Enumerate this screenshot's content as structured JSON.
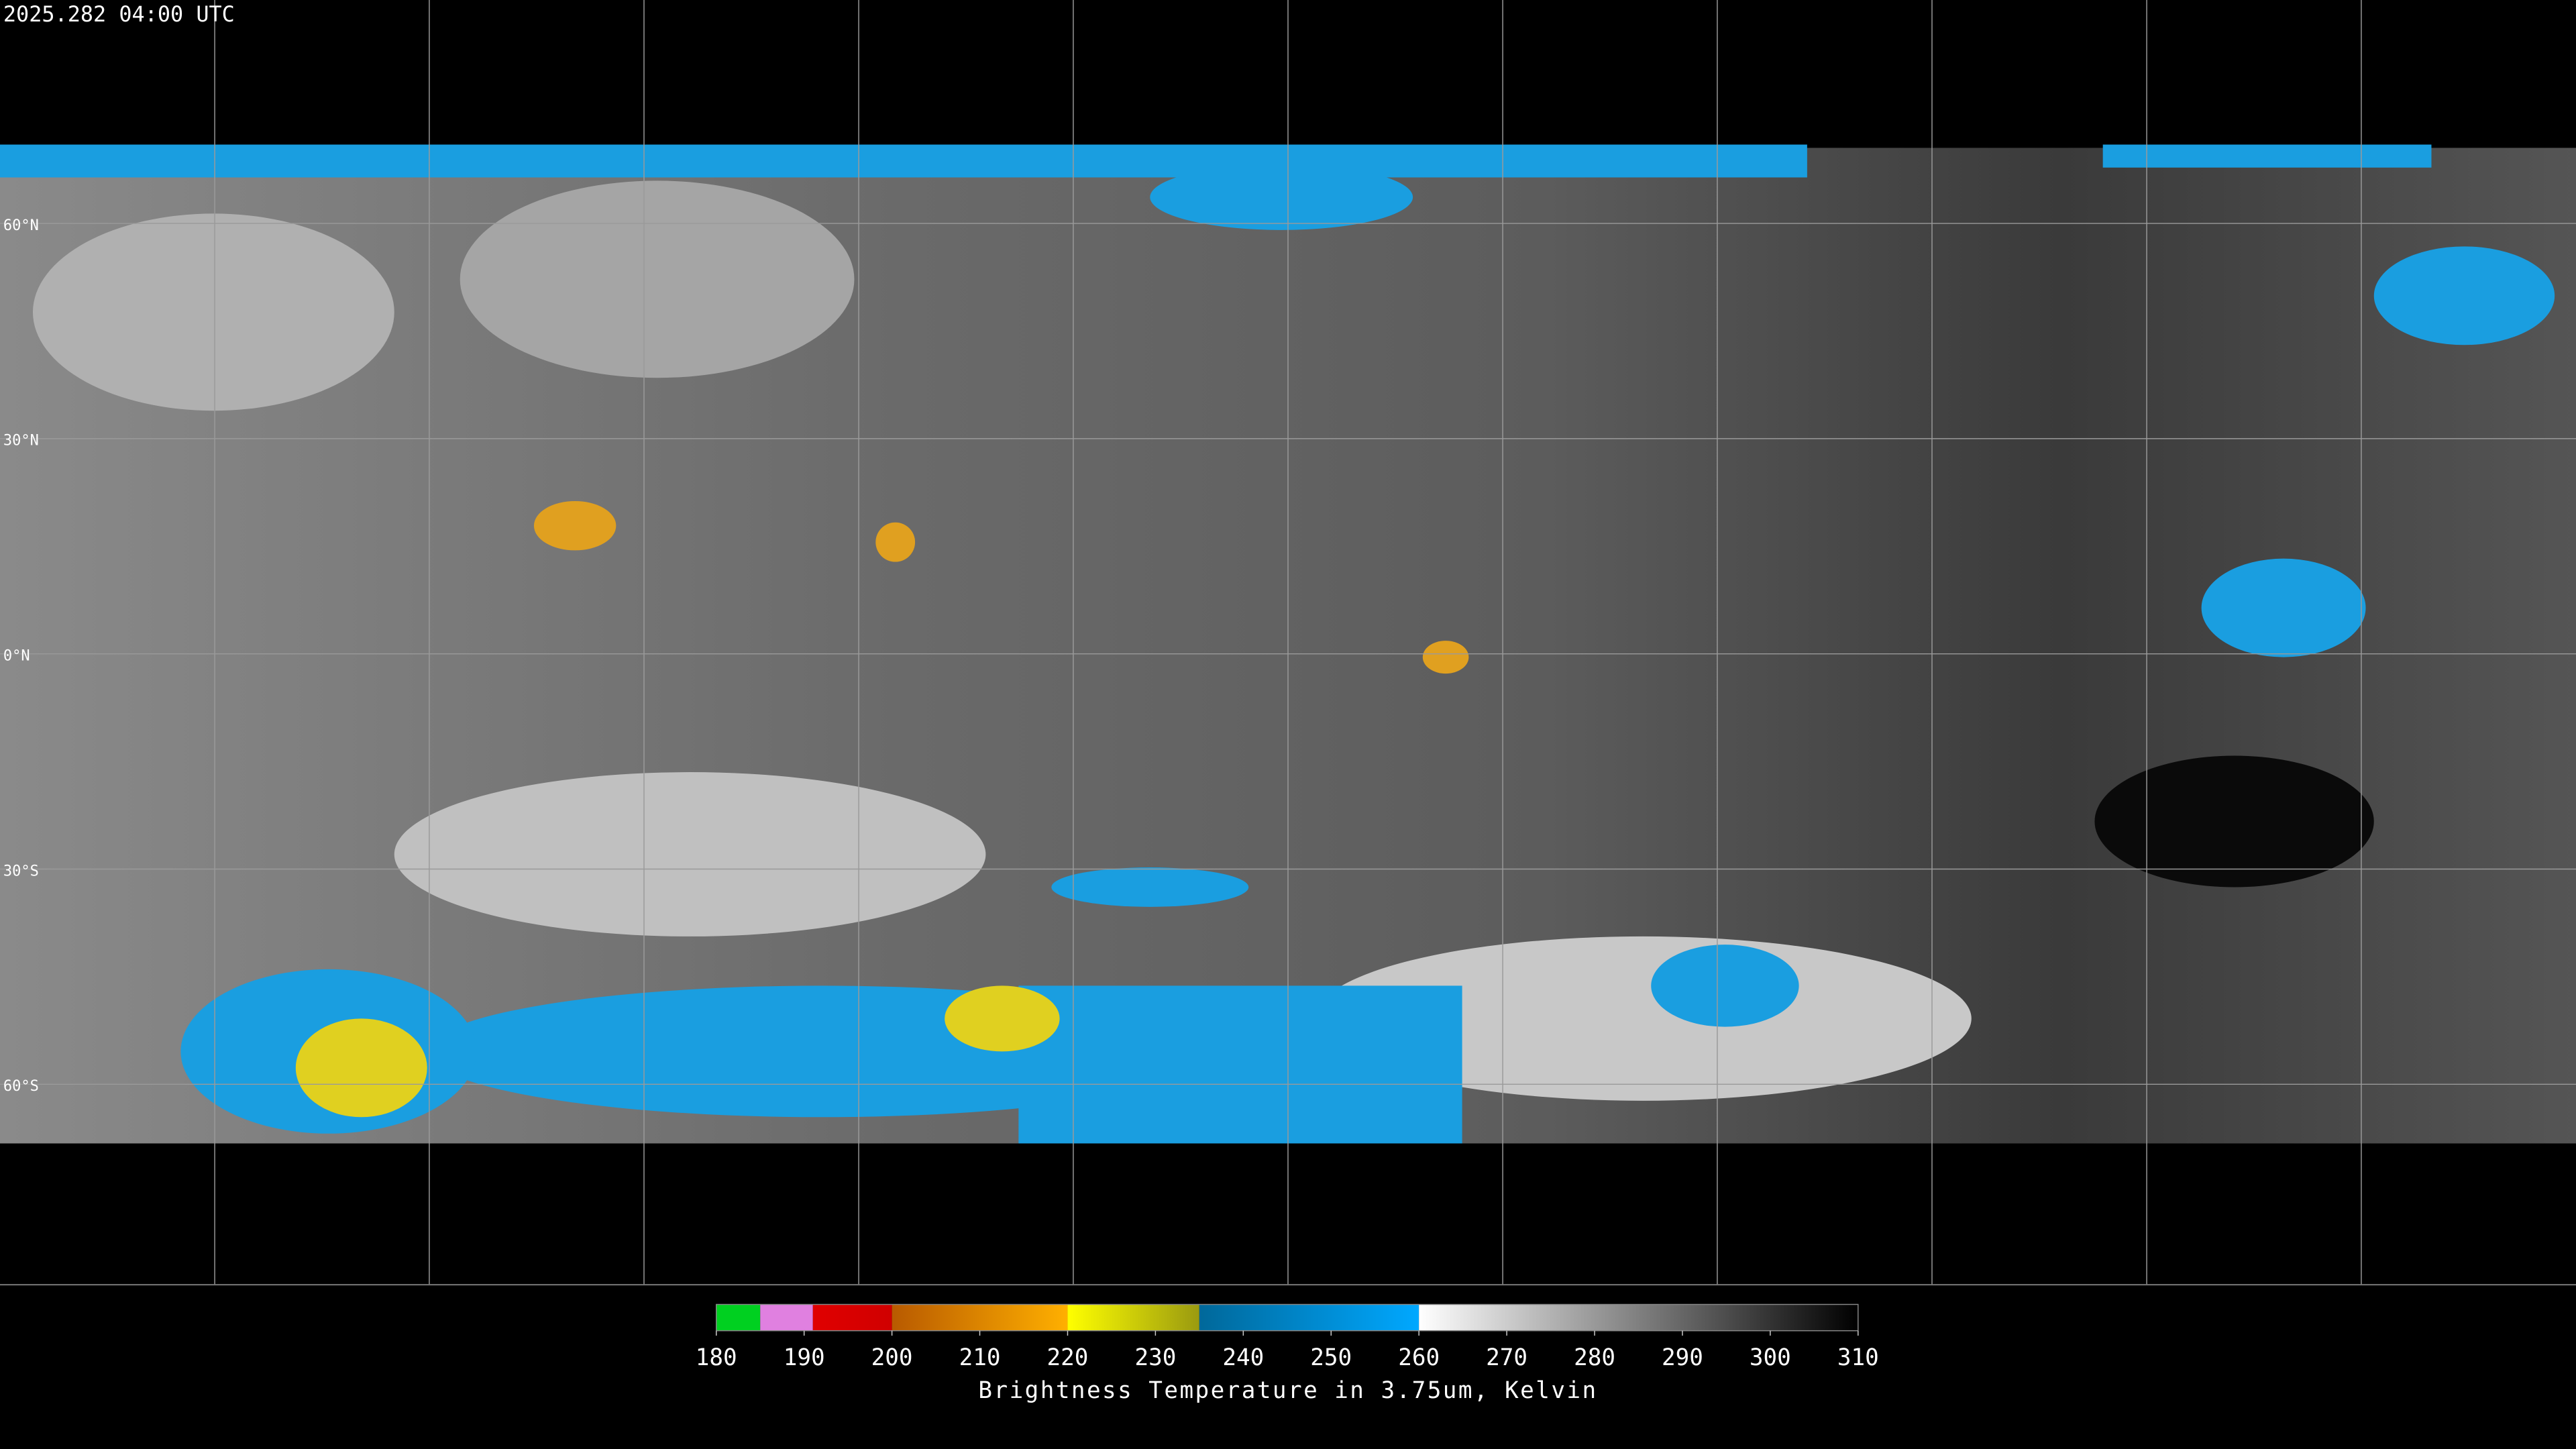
{
  "timestamp": "2025.282 04:00 UTC",
  "map": {
    "lat_lines": [
      {
        "value": 60,
        "label": "60°N"
      },
      {
        "value": 30,
        "label": "30°N"
      },
      {
        "value": 0,
        "label": "0°N"
      },
      {
        "value": -30,
        "label": "30°S"
      },
      {
        "value": -60,
        "label": "60°S"
      }
    ]
  },
  "colorbar": {
    "label": "Brightness Temperature in 3.75um, Kelvin",
    "range": [
      180,
      310
    ],
    "ticks": [
      180,
      190,
      200,
      210,
      220,
      230,
      240,
      250,
      260,
      270,
      280,
      290,
      300,
      310
    ],
    "segments": [
      {
        "from": 180,
        "to": 185,
        "colors": [
          "#00d020",
          "#00d020"
        ]
      },
      {
        "from": 185,
        "to": 191,
        "colors": [
          "#e080e0",
          "#e080e0"
        ]
      },
      {
        "from": 191,
        "to": 200,
        "colors": [
          "#e00000",
          "#d00000"
        ]
      },
      {
        "from": 200,
        "to": 220,
        "colors": [
          "#b85a00",
          "#ffb000"
        ]
      },
      {
        "from": 220,
        "to": 235,
        "colors": [
          "#ffff00",
          "#9a9a10"
        ]
      },
      {
        "from": 235,
        "to": 260,
        "colors": [
          "#00689a",
          "#00a8ff"
        ]
      },
      {
        "from": 260,
        "to": 310,
        "colors": [
          "#ffffff",
          "#000000"
        ]
      }
    ]
  }
}
